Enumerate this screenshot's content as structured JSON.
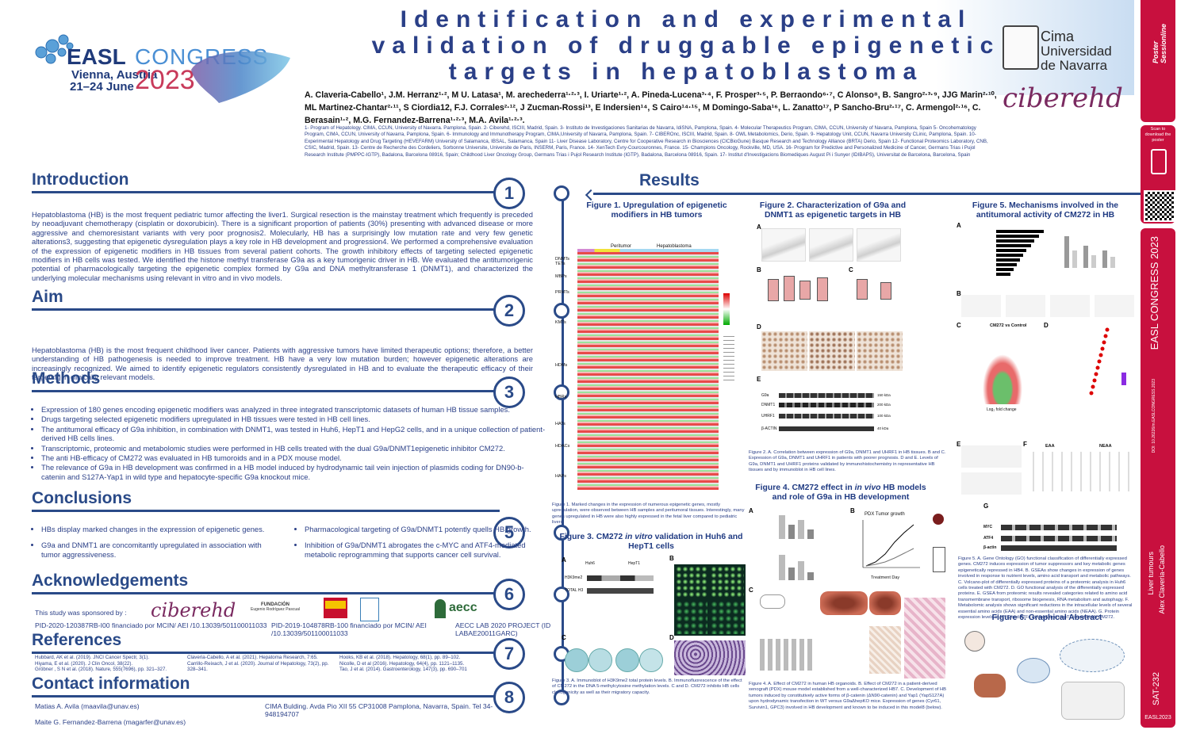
{
  "header": {
    "title": "Identification and experimental validation of druggable epigenetic targets in hepatoblastoma",
    "easl": "EASL",
    "congress": "CONGRESS",
    "location": "Vienna, Austria",
    "dates": "21–24 June",
    "year": "2023",
    "cima": "Cima",
    "universidad": "Universidad de Navarra",
    "ciberehd": "ciberehd"
  },
  "authors": "A. Claveria-Cabello¹, J.M. Herranz¹·², M U. Latasa¹, M. arechederra¹·²·³, I. Uriarte¹·², A. Pineda-Lucena³·⁴, F. Prosper³·⁵, P. Berraondo⁶·⁷, C Alonso⁸, B. Sangro²·³·⁹, JJG Marin²·¹⁰, ML Martinez-Chantar²·¹¹, S Ciordia12, F.J. Corrales²·¹², J Zucman-Rossi¹³, E Indersien¹⁴, S Cairo¹⁴·¹⁵, M Domingo-Saba¹⁶, L. Zanatto¹⁷, P Sancho-Bru²·¹⁷, C. Armengol²·¹⁶, C. Berasain¹·², M.G. Fernandez-Barrena¹·²·³, M.A. Avila¹·²·³.",
  "affiliations": "1- Program of Hepatology. CIMA, CCUN, University of Navarra. Pamplona, Spain. 2- Ciberehd, ISCIII, Madrid, Spain. 3- Instituto de Investigaciones Sanitarias de Navarra, IdiSNA, Pamplona, Spain. 4- Molecular Therapeutics Program, CIMA, CCUN, University of Navarra, Pamplona, Spain 5- Oncohematology Program, CIMA, CCUN, University of Navarra, Pamplona, Spain. 6- Immunology and Immunotherapy Program, CIMA,University of Navarra, Pamplona, Spain. 7- CIBEROnc, ISCIII, Madrid, Spain. 8- OWL Metabolomics, Derio, Spain. 9- Hepatology Unit, CCUN, Navarra University CLinic, Pamplona, Spain. 10- Experimental Hepatology and Drug Targeting (HEVEFARM) University of Salamanca, IBSAL, Salamanca, Spain 11- Liver Disease Laboratory, Centre for Cooperative Research in Biosciences (CICBioGune) Basque Research and Technology Alliance (BRTA) Derio, Spain 12- Functional Proteomics Laboratory, CNB, CSIC, Madrid, Spain. 13- Centre de Recherche des Cordeliers, Sorbonne Universite, Universite de Paris, INSERM, Paris, France. 14- XenTech Evry-Courcouronnes, France. 15- Champions Oncology, Rockville, MD, USA. 16- Program for Predictive and Personalized Medicine of Cancer, Germans Trias i Pujol Research Institute (PMPPC-IGTP), Badalona, Barcelona 08916, Spain; Childhood Liver Oncology Group, Germans Trias i Pujol Research Institute (IGTP), Badalona, Barcelona 08916, Spain. 17- Institut d'Investigacions Biomediques August Pi i Sunyer (IDIBAPS), Universitat de Barcelona, Barcelona, Spain",
  "sections": {
    "introduction": {
      "heading": "Introduction",
      "number": "1",
      "text": "Hepatoblastoma (HB) is the most frequent pediatric tumor affecting the liver1. Surgical resection is the mainstay treatment which frequently is preceded by neoadjuvant chemotherapy (cisplatin or doxorubicin). There is a significant proportion of patients (30%) presenting with advanced disease or more aggressive and chemoresistant variants with very poor prognosis2. Molecularly, HB has a surprisingly low mutation rate and very few genetic alterations3, suggesting that epigenetic dysregulation plays a key role in HB development and progression4. We performed a comprehensive evaluation of the expression of epigenetic modifiers in HB tissues from several patient cohorts. The growth inhibitory effects of targeting selected epigenetic modifiers in HB cells was tested. We identified the histone methyl transferase G9a as a key tumorigenic driver in HB. We evaluated the antitumorigenic potential of pharmacologically targeting the epigenetic complex formed by G9a and DNA methyltransferase 1 (DNMT1), and characterized the underlying molecular mechanisms using relevant in vitro and in vivo models."
    },
    "aim": {
      "heading": "Aim",
      "number": "2",
      "text": "Hepatoblastoma (HB) is the most frequent childhood liver cancer. Patients with aggressive tumors have limited therapeutic options; therefore, a better understanding of HB pathogenesis is needed to improve treatment. HB have a very low mutation burden; however epigenetic alterations are increasingly recognized. We aimed to identify epigenetic regulators consistently dysregulated in HB and to evaluate the therapeutic efficacy of their targeting in clinically relevant models."
    },
    "methods": {
      "heading": "Methods",
      "number": "3",
      "items": [
        "Expression of 180 genes encoding epigenetic modifiers was analyzed in three integrated transcriptomic datasets of human HB tissue samples.",
        "Drugs targeting selected epigenetic modifiers upregulated in HB tissues were tested in HB cell lines.",
        "The antitumoral efficacy of G9a inhibition, in combination with DNMT1, was tested in Huh6, HepT1 and HepG2 cells, and in a unique collection of patient-derived HB cells lines.",
        "Transcriptomic, proteomic and metabolomic studies were performed in HB cells treated with the dual G9a/DNMT1epigenetic inhibitor CM272.",
        "The anti HB-efficacy of CM272 was evaluated in HB tumoroids and in a PDX mouse model.",
        "The relevance of G9a in HB development was confirmed in a HB model induced by hydrodynamic tail vein injection of plasmids coding for DN90-b-catenin and S127A-Yap1 in wild type and hepatocyte-specific G9a knockout mice."
      ]
    },
    "conclusions": {
      "heading": "Conclusions",
      "number": "5",
      "left": [
        "HBs display marked changes in the expression of epigenetic genes.",
        "G9a and DNMT1 are concomitantly upregulated in association with tumor aggressiveness."
      ],
      "right": [
        "Pharmacological targeting of G9a/DNMT1 potently quells HB growth.",
        "Inhibition of G9a/DNMT1 abrogates the c-MYC and ATF4-mediated metabolic reprogramming that supports cancer cell survival."
      ]
    },
    "acknowledgements": {
      "heading": "Acknowledgements",
      "number": "6",
      "sponsored": "This study was sponsored by :",
      "grant1": "PID-2020-120387RB-I00 financiado por MCIN/ AEI /10.13039/501100011033",
      "grant2": "PID-2019-104878RB-100 financiado por MCIN/ AEI /10.13039/501100011033",
      "grant3": "AECC LAB 2020 PROJECT (ID LABAE20011GARC)",
      "fundacion": "FUNDACIÓN",
      "fundacion_sub": "Eugenio Rodríguez Pascual",
      "aecc": "aecc"
    },
    "references": {
      "heading": "References",
      "number": "7",
      "col1": [
        "Hubbard, AK et al. (2019). JNCI Cancer Spectr, 3(1).",
        "Hiyama, E et al. (2020). J Clin Oncol, 38(22).",
        "Gröbner , S N et al. (2018). Nature, 555(7696), pp. 321–327."
      ],
      "col2": [
        "Claveria-Cabello, A et al. (2021). Hepatoma Research, 7:65.",
        "Carrillo-Reixach, J et al. (2020). Journal of Hepatology, 73(2), pp. 328–341."
      ],
      "col3": [
        "Hooks, KB et al. (2018). Hepatology, 68(1), pp. 89–102.",
        "Nicolle, D et al (2016). Hepatology, 64(4), pp. 1121–1135.",
        "Tao, J et al. (2014). Gastroenterology, 147(3), pp. 690–701"
      ]
    },
    "contact": {
      "heading": "Contact information",
      "number": "8",
      "person1": "Matias A. Avila (maavila@unav.es)",
      "person2": "Maite G. Fernandez-Barrena (magarfer@unav.es)",
      "address": "CIMA Bulding.  Avda Pio XII 55 CP31008 Pamplona, Navarra, Spain. Tel 34-948194707"
    },
    "results": {
      "heading": "Results"
    }
  },
  "figures": {
    "fig1": {
      "title": "Figure 1. Upregulation of epigenetic modifiers in HB tumors",
      "groups": [
        "DNMTs TETs",
        "MBPs",
        "PRMTs",
        "KMTs",
        "HDMs",
        "HBRs",
        "HATs",
        "HDACs",
        "HAPs"
      ],
      "col_labels": [
        "Peritumor",
        "Hepatoblastoma"
      ],
      "caption": "Figure 1. Marked changes in the expression of numerous epigenetic genes, mostly upregulation, were observed between HB samples and peritumoral tissues. Interestingly, many genes upregulated in HB were also highly expressed in the fetal liver compared to pediatric livers."
    },
    "fig2": {
      "title": "Figure 2. Characterization of G9a and DNMT1 as epigenetic targets in HB",
      "caption": "Figure 2. A. Correlation between expression of G9a, DNMT1 and UHRF1 in HB tissues. B and C. Expression of G9a, DNMT1 and UHRF1 in patients with poorer prognosis. D and E. Levels of G9a, DNMT1 and UHRF1 proteins validated by immunohistochemistry in representative HB tissues and by immunoblot in HB cell lines.",
      "blot_rows": [
        "G9a",
        "DNMT1",
        "UHRF1",
        "β-ACTIN"
      ],
      "blot_kda": [
        "150 kDa",
        "200 kDa",
        "100 kDa",
        "40 kDa"
      ]
    },
    "fig3": {
      "title_plain": "Figure 3. CM272 ",
      "title_em": "in vitro",
      "title_rest": " validation in Huh6 and HepT1 cells",
      "caption": "Figure 3. A. Immunoblot of H3K9me2 total protein levels. B. Immunofluorescence of the effect of CM272 in the DNA 5-methylcytosine methylation levels. C and D. CM272 inhibits HB cells clonogenicity as well as their migratory capacity.",
      "cells": [
        "Huh6",
        "HepT1"
      ],
      "conditions": [
        "Control",
        "CM272"
      ],
      "blot_rows": [
        "H3K9me2",
        "TOTAL H3"
      ]
    },
    "fig4": {
      "title_plain": "Figure 4. CM272 effect in ",
      "title_em": "in vivo",
      "title_rest": " HB models and role of G9a in HB development",
      "pdx": "PDX Tumor growth",
      "xlabel": "Treatment Day",
      "caption": "Figure 4. A. Effect of CM272 in human HB organoids. B. Effect of CM272 in a patient-derived xenograft (PDX) mouse model established from a well-characterized HB7. C. Development of HB tumors induced by constitutively active forms of β-catenin (ΔN90-catenin) and Yap1 (YapS127A) upon hydrodynamic transfection in WT versus G9aΔhepKO mice. Expression of genes (Cyr61, Survivin1, GPC3) involved in HB development and known to be induced in this model8 (below)."
    },
    "fig5": {
      "title": "Figure 5. Mechanisms involved in the antitumoral activity of CM272 in HB",
      "volcano_title": "CM272 vs Control",
      "volcano_x": "Log₂ fold change",
      "panel_f": [
        "EAA",
        "NEAA"
      ],
      "blot_rows": [
        "MYC",
        "ATF4",
        "β-actin"
      ],
      "caption": "Figure 5. A. Gene Ontology (GO) functional classification of differentially expressed genes. CM272 induces expression of tumor suppressors and key metabolic genes epigenetically repressed in HB4. B. GSEAs show changes in expression of genes involved in response to nutrient levels, amino acid transport and metabolic pathways. C. Volcano-plot of differentially expressed proteins of a proteomic analysis in Huh6 cells treated with CM272. D. GO functional analysis of the differentially expressed proteins. E. GSEA from proteomic results revealed categories related to amino acid transmembrane transport, ribosome biogenesis, RNA metabolism and autophagy. F. Metabolomic analysis shows significant reductions in the intracellular levels of several essential amino acids (EAA) and non-essential amino acids (NEAA). G. Protein expression levels of MYC and ATF4 in Huh6 and HepT1 treated with CM272."
    },
    "fig6": {
      "title": "Figure 6. Graphical Abstract"
    }
  },
  "sidebar": {
    "scan": "Scan to download the poster",
    "congress": "EASL CONGRESS 2023",
    "topic": "Liver tumours",
    "author": "Alex Claveria-Cabello",
    "code": "SAT-232",
    "doi": "DOI: 10.26226/m.EASLCONGRESS.2023",
    "footer": "EASL2023"
  },
  "colors": {
    "navy": "#2a4a88",
    "title": "#2a3f87",
    "sidebar": "#c8103e"
  }
}
